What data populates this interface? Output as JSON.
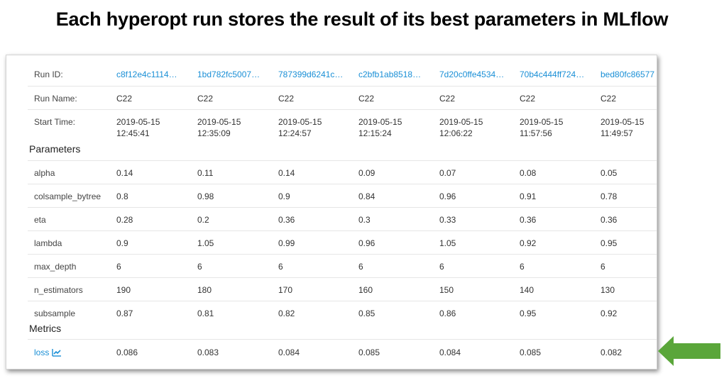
{
  "title": "Each hyperopt run stores the result of its best parameters in MLflow",
  "accent_link_color": "#1a8fd6",
  "arrow_color": "#5aa63a",
  "rows": {
    "run_id": {
      "label": "Run ID:",
      "values": [
        "c8f12e4c1114…",
        "1bd782fc5007…",
        "787399d6241c…",
        "c2bfb1ab8518…",
        "7d20c0ffe4534…",
        "70b4c444ff724…",
        "bed80fc86577"
      ]
    },
    "run_name": {
      "label": "Run Name:",
      "values": [
        "C22",
        "C22",
        "C22",
        "C22",
        "C22",
        "C22",
        "C22"
      ]
    },
    "start_time": {
      "label": "Start Time:",
      "dates": [
        "2019-05-15",
        "2019-05-15",
        "2019-05-15",
        "2019-05-15",
        "2019-05-15",
        "2019-05-15",
        "2019-05-15"
      ],
      "times": [
        "12:45:41",
        "12:35:09",
        "12:24:57",
        "12:15:24",
        "12:06:22",
        "11:57:56",
        "11:49:57"
      ]
    }
  },
  "parameters": {
    "heading": "Parameters",
    "rows": [
      {
        "name": "alpha",
        "values": [
          "0.14",
          "0.11",
          "0.14",
          "0.09",
          "0.07",
          "0.08",
          "0.05"
        ]
      },
      {
        "name": "colsample_bytree",
        "values": [
          "0.8",
          "0.98",
          "0.9",
          "0.84",
          "0.96",
          "0.91",
          "0.78"
        ]
      },
      {
        "name": "eta",
        "values": [
          "0.28",
          "0.2",
          "0.36",
          "0.3",
          "0.33",
          "0.36",
          "0.36"
        ]
      },
      {
        "name": "lambda",
        "values": [
          "0.9",
          "1.05",
          "0.99",
          "0.96",
          "1.05",
          "0.92",
          "0.95"
        ]
      },
      {
        "name": "max_depth",
        "values": [
          "6",
          "6",
          "6",
          "6",
          "6",
          "6",
          "6"
        ]
      },
      {
        "name": "n_estimators",
        "values": [
          "190",
          "180",
          "170",
          "160",
          "150",
          "140",
          "130"
        ]
      },
      {
        "name": "subsample",
        "values": [
          "0.87",
          "0.81",
          "0.82",
          "0.85",
          "0.86",
          "0.95",
          "0.92"
        ]
      }
    ]
  },
  "metrics": {
    "heading": "Metrics",
    "rows": [
      {
        "name": "loss",
        "icon": "line-chart-icon",
        "values": [
          "0.086",
          "0.083",
          "0.084",
          "0.085",
          "0.084",
          "0.085",
          "0.082"
        ]
      }
    ]
  }
}
